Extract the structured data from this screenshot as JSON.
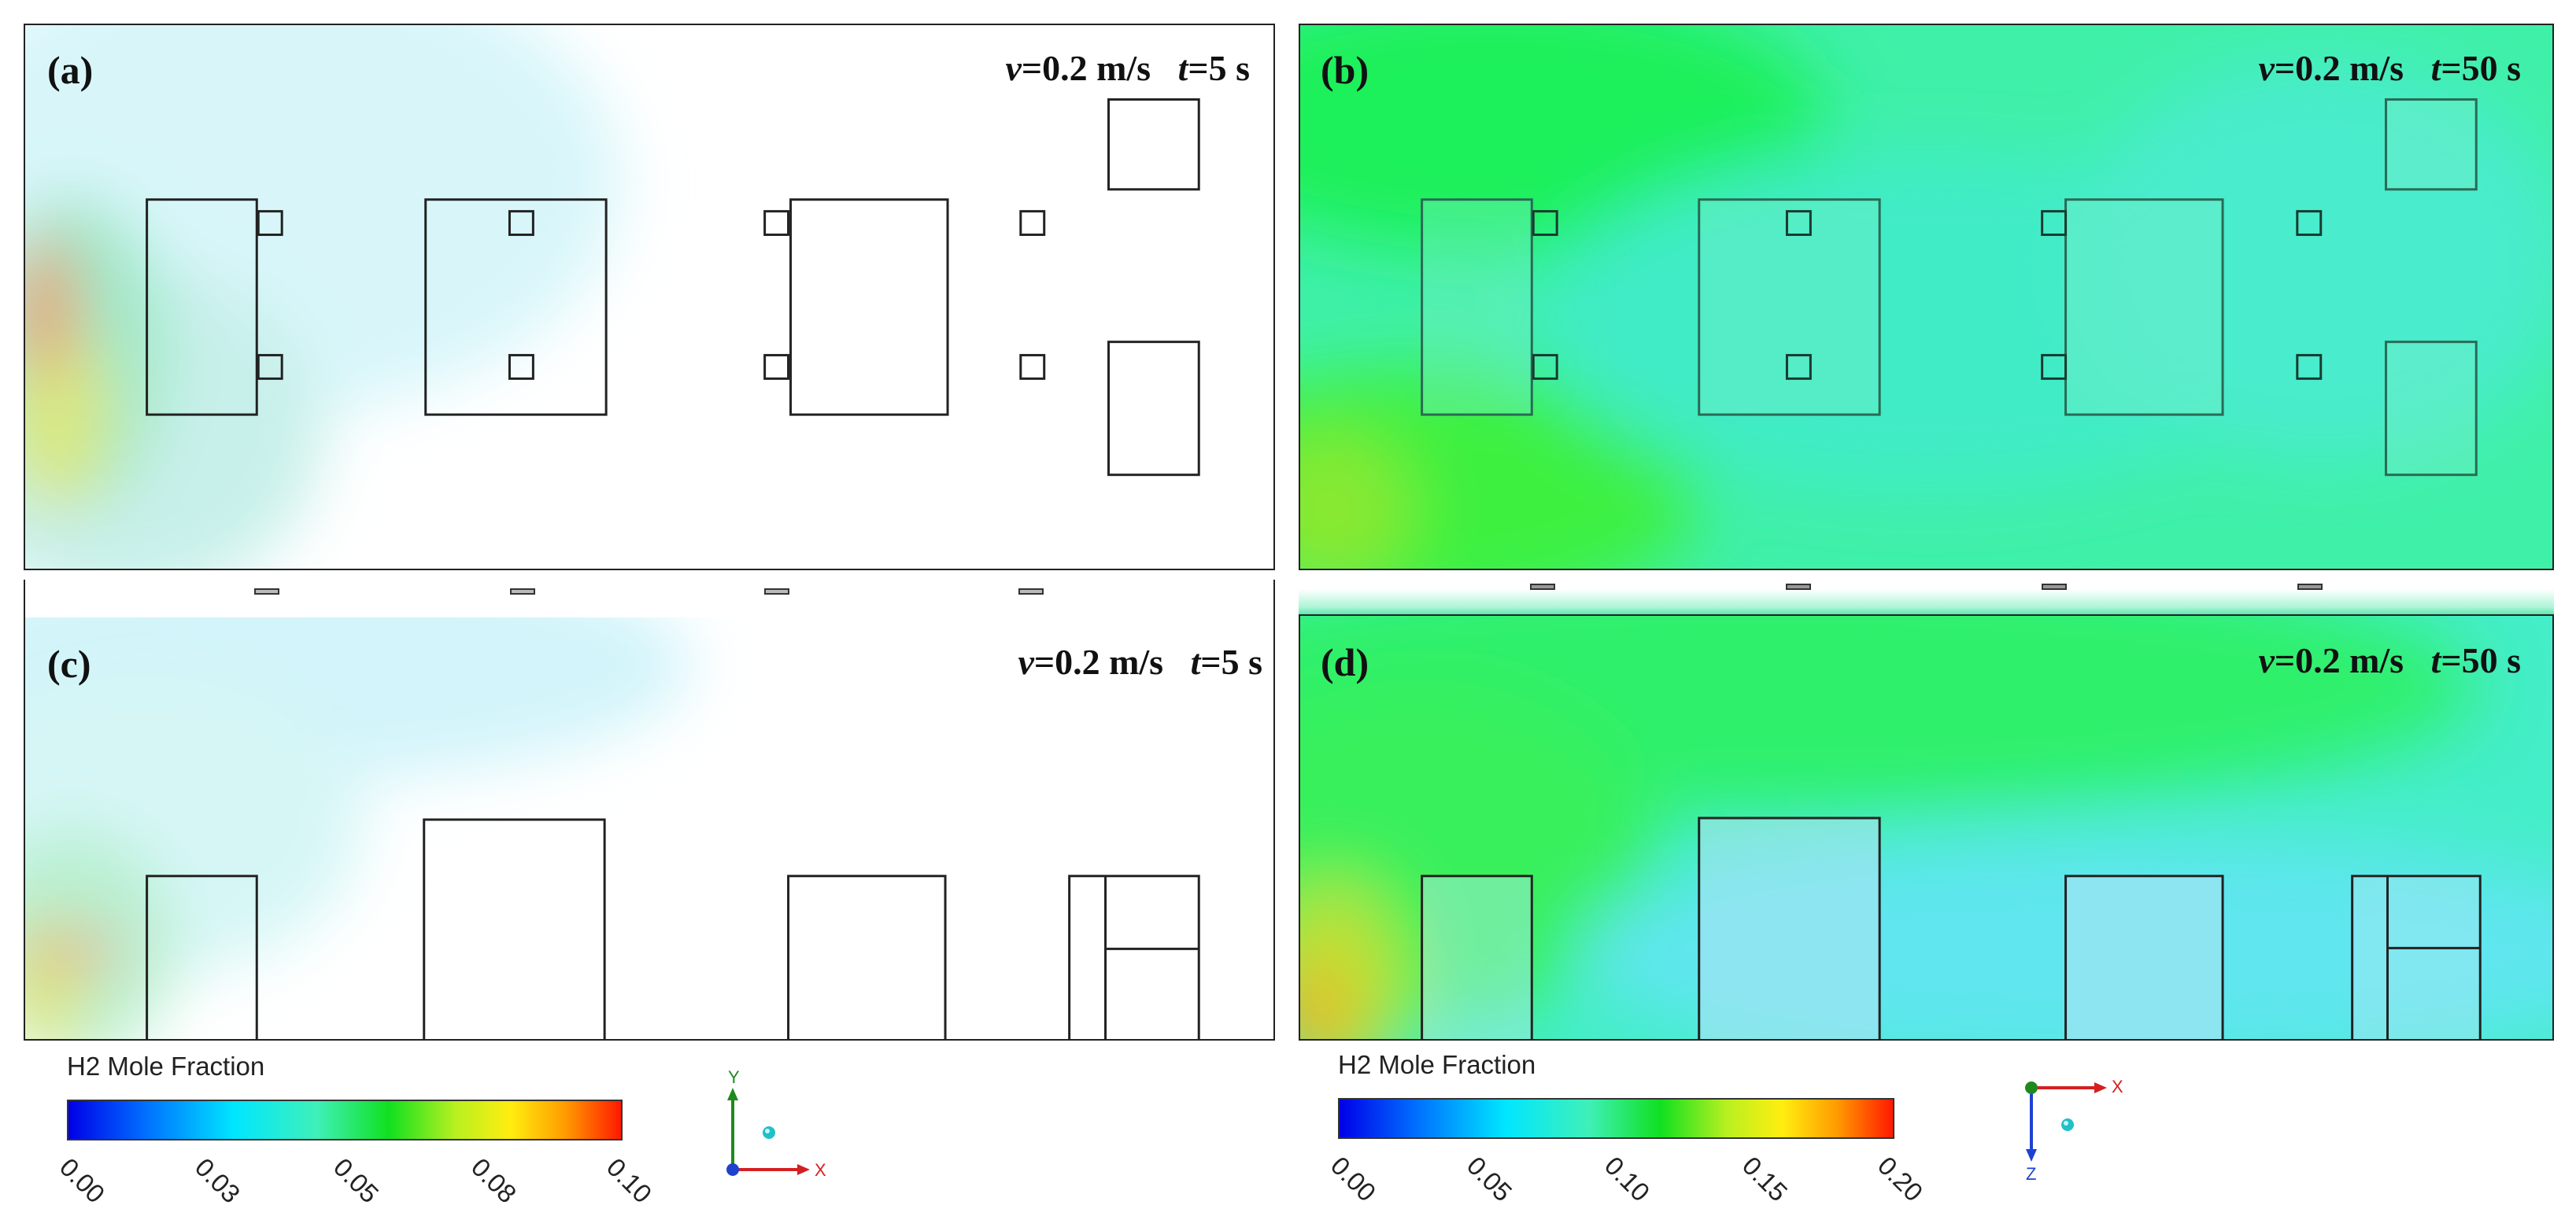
{
  "panels": [
    {
      "label": "(a)",
      "velocity": "=0.2 m/s",
      "time": "=5 s"
    },
    {
      "label": "(b)",
      "velocity": "=0.2 m/s",
      "time": "=50 s"
    },
    {
      "label": "(c)",
      "velocity": "=0.2 m/s",
      "time": "=5 s"
    },
    {
      "label": "(d)",
      "velocity": "=0.2 m/s",
      "time": "=50 s"
    }
  ],
  "symbols": {
    "v": "v",
    "t": "t"
  },
  "colorbars": [
    {
      "title": "H2 Mole Fraction",
      "ticks": [
        "0.00",
        "0.03",
        "0.05",
        "0.08",
        "0.10"
      ]
    },
    {
      "title": "H2 Mole Fraction",
      "ticks": [
        "0.00",
        "0.05",
        "0.10",
        "0.15",
        "0.20"
      ]
    }
  ],
  "triads": [
    {
      "up": "Y",
      "right": "X"
    },
    {
      "right": "X",
      "down": "Z"
    }
  ],
  "colors": {
    "outline": "#222222",
    "triad_x": "#d42020",
    "triad_y": "#1e8a1e",
    "triad_z": "#2040d0"
  }
}
